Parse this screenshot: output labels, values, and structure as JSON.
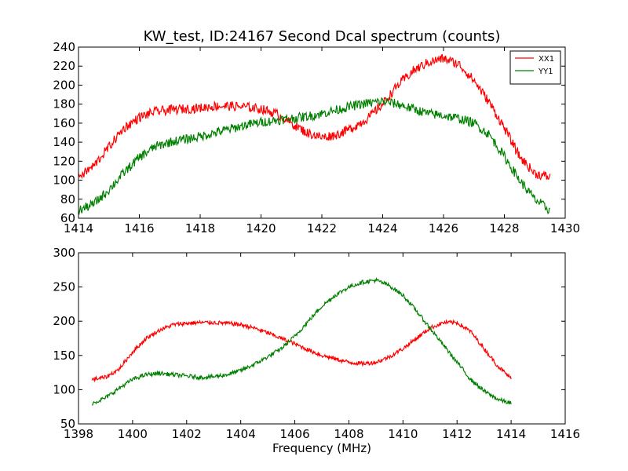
{
  "chart_data": [
    {
      "type": "line",
      "title": "KW_test, ID:24167 Second Dcal spectrum (counts)",
      "xlabel": "",
      "ylabel": "",
      "xlim": [
        1414,
        1430
      ],
      "ylim": [
        60,
        240
      ],
      "xticks": [
        1414,
        1416,
        1418,
        1420,
        1422,
        1424,
        1426,
        1428,
        1430
      ],
      "yticks": [
        60,
        80,
        100,
        120,
        140,
        160,
        180,
        200,
        220,
        240
      ],
      "grid": false,
      "legend": {
        "placement": "top-right"
      },
      "series": [
        {
          "name": "XX1",
          "color": "#ff0000",
          "x": [
            1414.0,
            1414.5,
            1415.0,
            1415.5,
            1416.0,
            1416.5,
            1417.0,
            1417.5,
            1418.0,
            1418.5,
            1419.0,
            1419.5,
            1420.0,
            1420.5,
            1421.0,
            1421.5,
            1422.0,
            1422.5,
            1423.0,
            1423.5,
            1424.0,
            1424.5,
            1425.0,
            1425.5,
            1426.0,
            1426.5,
            1427.0,
            1427.5,
            1428.0,
            1428.5,
            1429.0,
            1429.5
          ],
          "y": [
            103,
            115,
            135,
            155,
            166,
            172,
            174,
            175,
            176,
            178,
            178,
            177,
            175,
            170,
            160,
            150,
            145,
            148,
            155,
            165,
            180,
            200,
            215,
            224,
            228,
            222,
            205,
            182,
            155,
            125,
            107,
            103
          ]
        },
        {
          "name": "YY1",
          "color": "#008000",
          "x": [
            1414.0,
            1414.5,
            1415.0,
            1415.5,
            1416.0,
            1416.5,
            1417.0,
            1417.5,
            1418.0,
            1418.5,
            1419.0,
            1419.5,
            1420.0,
            1420.5,
            1421.0,
            1421.5,
            1422.0,
            1422.5,
            1423.0,
            1423.5,
            1424.0,
            1424.5,
            1425.0,
            1425.5,
            1426.0,
            1426.5,
            1427.0,
            1427.5,
            1428.0,
            1428.5,
            1429.0,
            1429.5
          ],
          "y": [
            68,
            75,
            90,
            108,
            124,
            135,
            140,
            143,
            146,
            150,
            154,
            158,
            161,
            163,
            165,
            167,
            170,
            174,
            178,
            181,
            183,
            180,
            175,
            170,
            168,
            165,
            160,
            148,
            125,
            100,
            80,
            68
          ]
        }
      ]
    },
    {
      "type": "line",
      "title": "",
      "xlabel": "Frequency (MHz)",
      "ylabel": "",
      "xlim": [
        1398,
        1416
      ],
      "ylim": [
        50,
        300
      ],
      "xticks": [
        1398,
        1400,
        1402,
        1404,
        1406,
        1408,
        1410,
        1412,
        1414,
        1416
      ],
      "yticks": [
        50,
        100,
        150,
        200,
        250,
        300
      ],
      "grid": false,
      "series": [
        {
          "color": "#ff0000",
          "x": [
            1398.5,
            1399.0,
            1399.5,
            1400.0,
            1400.5,
            1401.0,
            1401.5,
            1402.0,
            1402.5,
            1403.0,
            1403.5,
            1404.0,
            1404.5,
            1405.0,
            1405.5,
            1406.0,
            1406.5,
            1407.0,
            1407.5,
            1408.0,
            1408.5,
            1409.0,
            1409.5,
            1410.0,
            1410.5,
            1411.0,
            1411.5,
            1412.0,
            1412.5,
            1413.0,
            1413.5,
            1414.0
          ],
          "y": [
            115,
            118,
            130,
            155,
            175,
            187,
            195,
            197,
            198,
            198,
            197,
            195,
            190,
            183,
            175,
            167,
            158,
            150,
            145,
            140,
            138,
            140,
            148,
            160,
            175,
            190,
            198,
            198,
            185,
            160,
            135,
            116
          ]
        },
        {
          "color": "#008000",
          "x": [
            1398.5,
            1399.0,
            1399.5,
            1400.0,
            1400.5,
            1401.0,
            1401.5,
            1402.0,
            1402.5,
            1403.0,
            1403.5,
            1404.0,
            1404.5,
            1405.0,
            1405.5,
            1406.0,
            1406.5,
            1407.0,
            1407.5,
            1408.0,
            1408.5,
            1409.0,
            1409.5,
            1410.0,
            1410.5,
            1411.0,
            1411.5,
            1412.0,
            1412.5,
            1413.0,
            1413.5,
            1414.0
          ],
          "y": [
            80,
            88,
            102,
            115,
            122,
            124,
            122,
            120,
            118,
            119,
            122,
            128,
            137,
            148,
            160,
            178,
            200,
            222,
            238,
            250,
            257,
            260,
            252,
            238,
            215,
            190,
            165,
            140,
            115,
            98,
            86,
            80
          ]
        }
      ]
    }
  ]
}
